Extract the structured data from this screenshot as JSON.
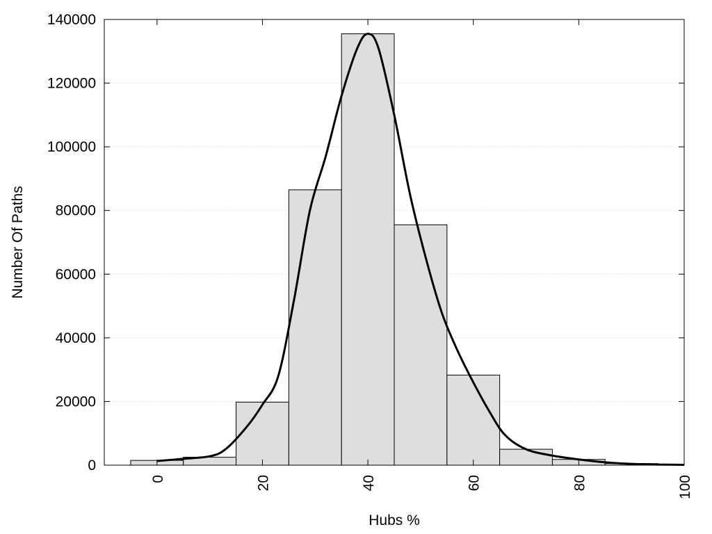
{
  "chart_data": {
    "type": "bar",
    "title": "",
    "xlabel": "Hubs %",
    "ylabel": "Number Of Paths",
    "xlim": [
      -10,
      100
    ],
    "ylim": [
      0,
      140000
    ],
    "grid": true,
    "legend": "none",
    "x_ticks": [
      0,
      20,
      40,
      60,
      80,
      100
    ],
    "y_ticks": [
      0,
      20000,
      40000,
      60000,
      80000,
      100000,
      120000,
      140000
    ],
    "bin_width": 10,
    "bins": [
      {
        "center": 0,
        "value": 1500
      },
      {
        "center": 10,
        "value": 2500
      },
      {
        "center": 20,
        "value": 19800
      },
      {
        "center": 30,
        "value": 86500
      },
      {
        "center": 40,
        "value": 135500
      },
      {
        "center": 50,
        "value": 75500
      },
      {
        "center": 60,
        "value": 28300
      },
      {
        "center": 70,
        "value": 5000
      },
      {
        "center": 80,
        "value": 1800
      },
      {
        "center": 90,
        "value": 500
      }
    ],
    "density_curve": {
      "x": [
        0,
        5,
        10,
        13,
        17,
        20,
        23,
        26,
        29,
        32,
        35,
        38,
        40,
        42,
        45,
        48,
        51,
        54,
        57,
        60,
        63,
        66,
        70,
        75,
        80,
        85,
        90,
        95,
        100
      ],
      "y": [
        1300,
        2000,
        2800,
        5000,
        12000,
        19000,
        28000,
        52000,
        80000,
        97000,
        116000,
        131000,
        135500,
        131000,
        110000,
        85000,
        65000,
        48000,
        36000,
        26000,
        17000,
        9500,
        5000,
        3000,
        1800,
        900,
        400,
        200,
        100
      ]
    },
    "colors": {
      "bar_fill": "#dedede",
      "bar_stroke": "#000000",
      "curve": "#000000",
      "grid": "#c8c8c8"
    }
  }
}
